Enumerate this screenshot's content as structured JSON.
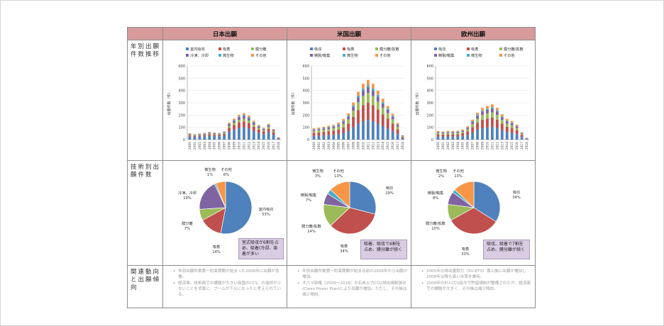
{
  "headers": {
    "corner": "",
    "columns": [
      "日本出願",
      "米国出願",
      "欧州出願"
    ]
  },
  "row_labels": [
    "年別出願件数推移",
    "技術別出願件数",
    "関連動向と出願傾向"
  ],
  "legend_colors": {
    "c1": "#4f81bd",
    "c2": "#c0504d",
    "c3": "#9bbb59",
    "c4": "#8064a2",
    "c5": "#4bacc6",
    "c6": "#f79646"
  },
  "axis_label": "出願件数（件）",
  "chart_data": [
    {
      "type": "bar",
      "stacked": true,
      "region": "日本出願",
      "legend": [
        "室内吸収",
        "吸着",
        "膜分離",
        "冷凍、冷却",
        "微生物",
        "その他"
      ],
      "ylabel": "出願件数（件）",
      "ylim": [
        0,
        600
      ],
      "yticks": [
        0,
        100,
        200,
        300,
        400,
        500,
        600
      ],
      "categories": [
        "2000",
        "2001",
        "2002",
        "2003",
        "2004",
        "2005",
        "2006",
        "2007",
        "2008",
        "2009",
        "2010",
        "2011",
        "2012",
        "2013",
        "2014",
        "2015",
        "2016",
        "2017",
        "2018"
      ],
      "series": [
        {
          "name": "室内吸収",
          "values": [
            25,
            22,
            24,
            28,
            32,
            30,
            28,
            35,
            65,
            80,
            95,
            100,
            90,
            70,
            55,
            45,
            60,
            40,
            10
          ]
        },
        {
          "name": "吸着",
          "values": [
            10,
            8,
            10,
            10,
            12,
            11,
            10,
            12,
            30,
            38,
            45,
            48,
            45,
            35,
            28,
            22,
            28,
            20,
            4
          ]
        },
        {
          "name": "膜分離",
          "values": [
            5,
            4,
            5,
            5,
            6,
            5,
            5,
            6,
            15,
            18,
            20,
            22,
            20,
            16,
            12,
            10,
            14,
            9,
            2
          ]
        },
        {
          "name": "冷凍、冷却",
          "values": [
            6,
            5,
            6,
            6,
            7,
            6,
            6,
            7,
            14,
            18,
            22,
            24,
            22,
            17,
            13,
            11,
            15,
            10,
            2
          ]
        },
        {
          "name": "微生物",
          "values": [
            2,
            2,
            2,
            2,
            2,
            2,
            2,
            3,
            5,
            6,
            7,
            8,
            7,
            5,
            4,
            3,
            4,
            3,
            1
          ]
        },
        {
          "name": "その他",
          "values": [
            3,
            3,
            3,
            3,
            4,
            3,
            3,
            4,
            9,
            11,
            13,
            14,
            12,
            10,
            7,
            6,
            8,
            5,
            1
          ]
        }
      ]
    },
    {
      "type": "bar",
      "stacked": true,
      "region": "米国出願",
      "legend": [
        "吸収",
        "吸着",
        "膜分離/拡散",
        "精製/輸集",
        "微生物",
        "その他"
      ],
      "ylabel": "出願件数（件）",
      "ylim": [
        0,
        600
      ],
      "yticks": [
        0,
        100,
        200,
        300,
        400,
        500,
        600
      ],
      "categories": [
        "2000",
        "2001",
        "2002",
        "2003",
        "2004",
        "2005",
        "2006",
        "2007",
        "2008",
        "2009",
        "2010",
        "2011",
        "2012",
        "2013",
        "2014",
        "2015",
        "2016",
        "2017",
        "2018"
      ],
      "series": [
        {
          "name": "吸収",
          "values": [
            30,
            32,
            35,
            38,
            40,
            45,
            55,
            70,
            100,
            130,
            150,
            160,
            150,
            130,
            110,
            90,
            70,
            45,
            12
          ]
        },
        {
          "name": "吸着",
          "values": [
            25,
            27,
            28,
            30,
            33,
            38,
            45,
            60,
            85,
            110,
            130,
            140,
            130,
            115,
            95,
            80,
            60,
            38,
            10
          ]
        },
        {
          "name": "膜分離/拡散",
          "values": [
            15,
            16,
            17,
            18,
            20,
            22,
            28,
            35,
            50,
            65,
            75,
            80,
            75,
            65,
            55,
            45,
            35,
            22,
            6
          ]
        },
        {
          "name": "精製/輸集",
          "values": [
            10,
            10,
            11,
            12,
            13,
            15,
            18,
            22,
            30,
            38,
            45,
            48,
            45,
            40,
            33,
            27,
            21,
            14,
            4
          ]
        },
        {
          "name": "微生物",
          "values": [
            4,
            4,
            4,
            5,
            5,
            6,
            7,
            8,
            12,
            15,
            17,
            18,
            17,
            15,
            12,
            10,
            8,
            5,
            1
          ]
        },
        {
          "name": "その他",
          "values": [
            8,
            8,
            9,
            10,
            10,
            12,
            15,
            18,
            25,
            32,
            38,
            40,
            38,
            33,
            28,
            22,
            17,
            11,
            3
          ]
        }
      ]
    },
    {
      "type": "bar",
      "stacked": true,
      "region": "欧州出願",
      "legend": [
        "吸収",
        "吸着",
        "膜分離/拡散",
        "精製/輸集",
        "微生物",
        "その他"
      ],
      "ylabel": "出願件数（件）",
      "ylim": [
        0,
        600
      ],
      "yticks": [
        0,
        100,
        200,
        300,
        400,
        500,
        600
      ],
      "categories": [
        "2000",
        "2001",
        "2002",
        "2003",
        "2004",
        "2005",
        "2006",
        "2007",
        "2008",
        "2009",
        "2010",
        "2011",
        "2012",
        "2013",
        "2014",
        "2015",
        "2016",
        "2017",
        "2018"
      ],
      "series": [
        {
          "name": "吸収",
          "values": [
            25,
            24,
            26,
            25,
            26,
            30,
            40,
            60,
            80,
            95,
            100,
            105,
            95,
            75,
            60,
            55,
            45,
            22,
            5
          ]
        },
        {
          "name": "吸着",
          "values": [
            18,
            17,
            18,
            18,
            19,
            22,
            28,
            42,
            58,
            68,
            72,
            75,
            68,
            55,
            45,
            40,
            32,
            16,
            4
          ]
        },
        {
          "name": "膜分離/拡散",
          "values": [
            10,
            9,
            10,
            10,
            10,
            12,
            16,
            24,
            32,
            38,
            40,
            42,
            38,
            30,
            25,
            22,
            18,
            9,
            2
          ]
        },
        {
          "name": "精製/輸集",
          "values": [
            8,
            8,
            8,
            8,
            8,
            9,
            12,
            18,
            24,
            28,
            30,
            31,
            28,
            23,
            19,
            17,
            13,
            7,
            2
          ]
        },
        {
          "name": "微生物",
          "values": [
            3,
            3,
            3,
            3,
            3,
            3,
            4,
            6,
            8,
            9,
            10,
            10,
            9,
            7,
            6,
            5,
            4,
            2,
            1
          ]
        },
        {
          "name": "その他",
          "values": [
            6,
            6,
            6,
            6,
            6,
            7,
            9,
            13,
            18,
            21,
            23,
            24,
            21,
            17,
            14,
            12,
            10,
            5,
            1
          ]
        }
      ]
    },
    {
      "type": "pie",
      "region": "日本出願",
      "slices": [
        {
          "label": "室内吸収",
          "value": 53,
          "text": "53%"
        },
        {
          "label": "吸着",
          "value": 14,
          "text": "14%"
        },
        {
          "label": "膜分離",
          "value": 7,
          "text": "7%"
        },
        {
          "label": "冷凍、冷却",
          "value": 19,
          "text": "19%"
        },
        {
          "label": "微生物",
          "value": 1,
          "text": "1%"
        },
        {
          "label": "その他",
          "value": 6,
          "text": "6%"
        }
      ],
      "note": "室式吸収が6割を占め、吸着(冷却、吸着が多い"
    },
    {
      "type": "pie",
      "region": "米国出願",
      "slices": [
        {
          "label": "吸収",
          "value": 29,
          "text": "29%"
        },
        {
          "label": "吸着",
          "value": 34,
          "text": "34%"
        },
        {
          "label": "膜分離/拡散",
          "value": 14,
          "text": "14%"
        },
        {
          "label": "精製/輸集",
          "value": 7,
          "text": "7%"
        },
        {
          "label": "微生物",
          "value": 3,
          "text": "3%"
        },
        {
          "label": "その他",
          "value": 13,
          "text": "13%"
        }
      ],
      "note": "吸着、吸収で6割を占め、膜分離が続く"
    },
    {
      "type": "pie",
      "region": "欧州出願",
      "slices": [
        {
          "label": "吸収",
          "value": 34,
          "text": "34%"
        },
        {
          "label": "吸着",
          "value": 33,
          "text": "33%"
        },
        {
          "label": "膜分離/拡散",
          "value": 10,
          "text": "10%"
        },
        {
          "label": "精製/輸集",
          "value": 8,
          "text": "8%"
        },
        {
          "label": "微生物",
          "value": 2,
          "text": "2%"
        },
        {
          "label": "その他",
          "value": 13,
          "text": "13%"
        }
      ],
      "note": "吸収、吸着で7割を占め、膜分離が続く"
    }
  ],
  "notes": {
    "jp": [
      "年別出願件数第一約束期間が始まった2008年に出願が急増。",
      "経済面、技術面での課題が大きい自国のCCS、の進捗が少ないことを背景に、ブームが下火になったと考えられている。"
    ],
    "us": [
      "年別出願件数第一約束期間が始まる前の2006年から出願が増加。",
      "オバマ政権（2009～2016）の石炭火力CO2排出規制強化(Clean Power Plan)により出願が増加。ただし、その後は減少傾向。"
    ],
    "eu": [
      "2005年の排出量取引（EU-ETS）導入後に出願が増加し2008年以降も高い水準を維持。",
      "2009年のEU-CCS指令で貯留規制が整備されたが、経済面での課題が大きく、その後は減少傾向。"
    ]
  }
}
